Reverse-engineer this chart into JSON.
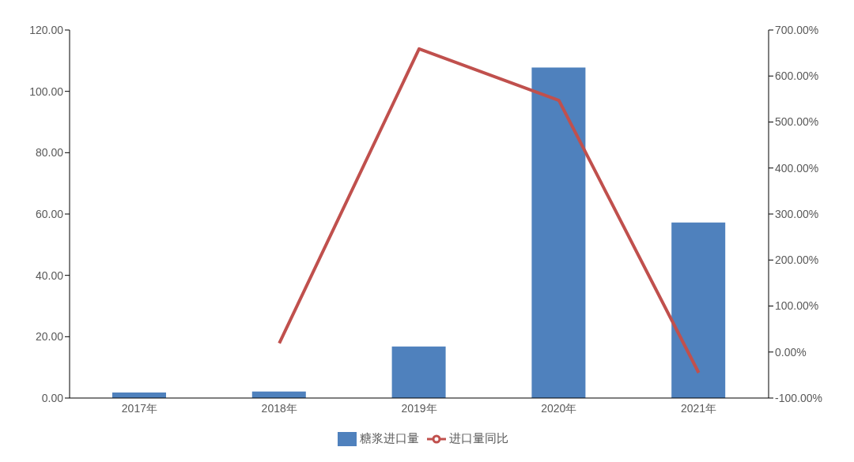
{
  "chart_data": {
    "type": "bar",
    "categories": [
      "2017年",
      "2018年",
      "2019年",
      "2020年",
      "2021年"
    ],
    "series": [
      {
        "name": "糖浆进口量",
        "color": "#4f81bd",
        "values": [
          1.8,
          2.1,
          16.8,
          107.8,
          57.2
        ]
      },
      {
        "name": "进口量同比",
        "type": "line",
        "axis": "y2",
        "color": "#c0504d",
        "values": [
          null,
          19,
          659,
          547,
          -45
        ]
      }
    ],
    "ylim": [
      0,
      120
    ],
    "yticks": [
      {
        "value": 0,
        "label": "0.00"
      },
      {
        "value": 20,
        "label": "20.00"
      },
      {
        "value": 40,
        "label": "40.00"
      },
      {
        "value": 60,
        "label": "60.00"
      },
      {
        "value": 80,
        "label": "80.00"
      },
      {
        "value": 100,
        "label": "100.00"
      },
      {
        "value": 120,
        "label": "120.00"
      }
    ],
    "y2lim": [
      -100,
      700
    ],
    "y2ticks": [
      {
        "value": -100,
        "label": "-100.00%"
      },
      {
        "value": 0,
        "label": "0.00%"
      },
      {
        "value": 100,
        "label": "100.00%"
      },
      {
        "value": 200,
        "label": "200.00%"
      },
      {
        "value": 300,
        "label": "300.00%"
      },
      {
        "value": 400,
        "label": "400.00%"
      },
      {
        "value": 500,
        "label": "500.00%"
      },
      {
        "value": 600,
        "label": "600.00%"
      },
      {
        "value": 700,
        "label": "700.00%"
      }
    ],
    "grid": false,
    "legend": "bottom",
    "marker": "none",
    "line_style": "solid"
  }
}
